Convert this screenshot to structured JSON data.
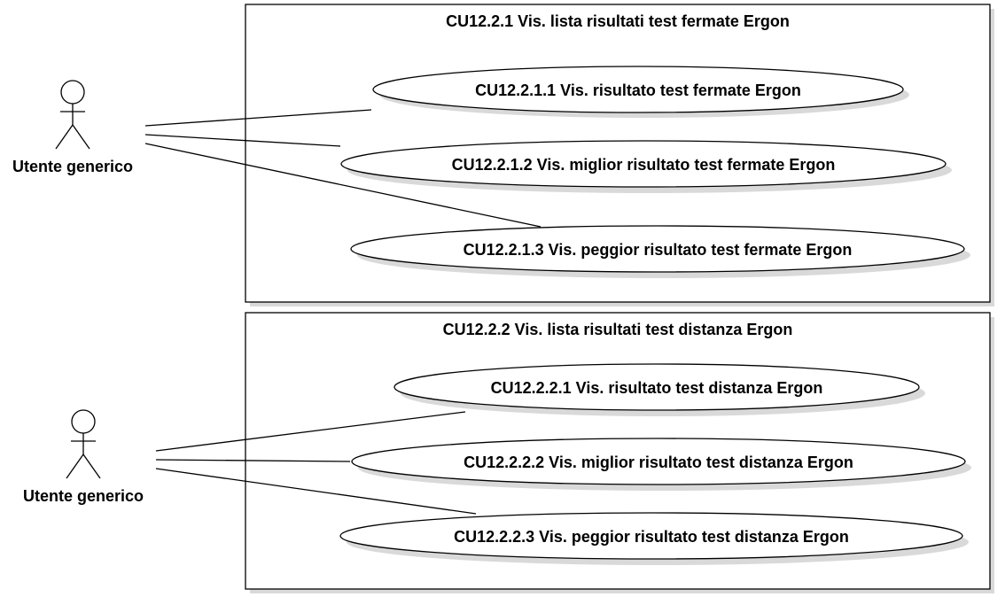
{
  "packages": [
    {
      "title": "CU12.2.1 Vis. lista risultati test fermate Ergon",
      "use_cases": [
        "CU12.2.1.1 Vis. risultato test fermate Ergon",
        "CU12.2.1.2 Vis. miglior risultato test fermate Ergon",
        "CU12.2.1.3 Vis. peggior risultato test fermate Ergon"
      ]
    },
    {
      "title": "CU12.2.2 Vis. lista risultati test distanza Ergon",
      "use_cases": [
        "CU12.2.2.1 Vis. risultato test distanza Ergon",
        "CU12.2.2.2 Vis. miglior risultato test distanza Ergon",
        "CU12.2.2.3 Vis. peggior risultato test distanza Ergon"
      ]
    }
  ],
  "actors": [
    {
      "label": "Utente generico"
    },
    {
      "label": "Utente generico"
    }
  ]
}
